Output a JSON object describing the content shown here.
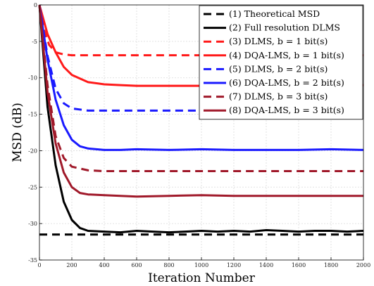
{
  "chart_data": {
    "type": "line",
    "xlabel": "Iteration Number",
    "ylabel": "MSD (dB)",
    "xlim": [
      0,
      2000
    ],
    "ylim": [
      -35,
      0
    ],
    "xticks": [
      0,
      200,
      400,
      600,
      800,
      1000,
      1200,
      1400,
      1600,
      1800,
      2000
    ],
    "yticks": [
      0,
      -5,
      -10,
      -15,
      -20,
      -25,
      -30,
      -35
    ],
    "grid": true,
    "legend_position": "top-right",
    "series": [
      {
        "name": "(1) Theoretical MSD",
        "color": "#000000",
        "dash": "dashed",
        "x": [
          0,
          2000
        ],
        "y": [
          -31.5,
          -31.5
        ]
      },
      {
        "name": "(2) Full resolution DLMS",
        "color": "#000000",
        "dash": "solid",
        "x": [
          0,
          50,
          100,
          150,
          200,
          250,
          300,
          400,
          500,
          600,
          700,
          800,
          900,
          1000,
          1100,
          1200,
          1300,
          1400,
          1500,
          1600,
          1700,
          1800,
          1900,
          2000
        ],
        "y": [
          0,
          -14,
          -22,
          -27,
          -29.5,
          -30.6,
          -31.0,
          -31.1,
          -31.2,
          -31.0,
          -31.1,
          -31.2,
          -31.1,
          -31.0,
          -31.1,
          -31.0,
          -31.1,
          -30.9,
          -31.0,
          -31.1,
          -31.0,
          -31.0,
          -31.1,
          -31.0
        ]
      },
      {
        "name": "(3) DLMS, b = 1 bit(s)",
        "color": "#ff1a1a",
        "dash": "dashed",
        "x": [
          0,
          30,
          60,
          100,
          150,
          200,
          300,
          400,
          500,
          600,
          800,
          1000,
          1200,
          1400,
          1600,
          1800,
          2000
        ],
        "y": [
          0,
          -3.5,
          -5.5,
          -6.5,
          -6.8,
          -6.9,
          -6.9,
          -6.9,
          -6.9,
          -6.9,
          -6.9,
          -6.9,
          -6.9,
          -6.9,
          -6.9,
          -6.9,
          -6.9
        ]
      },
      {
        "name": "(4) DQA-LMS, b = 1 bit(s)",
        "color": "#ff1a1a",
        "dash": "solid",
        "x": [
          0,
          50,
          100,
          150,
          200,
          300,
          400,
          500,
          600,
          800,
          1000,
          1200,
          1400,
          1600,
          1800,
          2000
        ],
        "y": [
          0,
          -4,
          -6.5,
          -8.5,
          -9.6,
          -10.6,
          -10.9,
          -11.0,
          -11.1,
          -11.1,
          -11.1,
          -11.0,
          -11.1,
          -11.1,
          -11.1,
          -11.0
        ]
      },
      {
        "name": "(5) DLMS, b = 2 bit(s)",
        "color": "#1a1aff",
        "dash": "dashed",
        "x": [
          0,
          50,
          100,
          150,
          200,
          300,
          400,
          500,
          600,
          800,
          1000,
          1200,
          1400,
          1600,
          1800,
          2000
        ],
        "y": [
          0,
          -7,
          -11.5,
          -13.5,
          -14.2,
          -14.5,
          -14.5,
          -14.5,
          -14.5,
          -14.5,
          -14.5,
          -14.5,
          -14.5,
          -14.5,
          -14.5,
          -14.5
        ]
      },
      {
        "name": "(6) DQA-LMS, b = 2 bit(s)",
        "color": "#1a1aff",
        "dash": "solid",
        "x": [
          0,
          50,
          100,
          150,
          200,
          250,
          300,
          400,
          500,
          600,
          800,
          1000,
          1200,
          1400,
          1600,
          1800,
          2000
        ],
        "y": [
          0,
          -7.5,
          -13,
          -16.5,
          -18.5,
          -19.4,
          -19.7,
          -19.9,
          -19.9,
          -19.8,
          -19.9,
          -19.8,
          -19.9,
          -19.9,
          -19.9,
          -19.8,
          -19.9
        ]
      },
      {
        "name": "(7) DLMS, b = 3 bit(s)",
        "color": "#a0192a",
        "dash": "dashed",
        "x": [
          0,
          50,
          100,
          150,
          200,
          300,
          400,
          500,
          600,
          800,
          1000,
          1200,
          1400,
          1600,
          1800,
          2000
        ],
        "y": [
          0,
          -11,
          -18,
          -21,
          -22.2,
          -22.7,
          -22.8,
          -22.8,
          -22.8,
          -22.8,
          -22.8,
          -22.8,
          -22.8,
          -22.8,
          -22.8,
          -22.8
        ]
      },
      {
        "name": "(8) DQA-LMS, b = 3 bit(s)",
        "color": "#a0192a",
        "dash": "solid",
        "x": [
          0,
          50,
          100,
          150,
          200,
          250,
          300,
          400,
          500,
          600,
          800,
          1000,
          1200,
          1400,
          1600,
          1800,
          2000
        ],
        "y": [
          0,
          -12,
          -19,
          -23,
          -25,
          -25.8,
          -26.0,
          -26.1,
          -26.2,
          -26.3,
          -26.2,
          -26.1,
          -26.2,
          -26.2,
          -26.2,
          -26.2,
          -26.2
        ]
      }
    ]
  }
}
